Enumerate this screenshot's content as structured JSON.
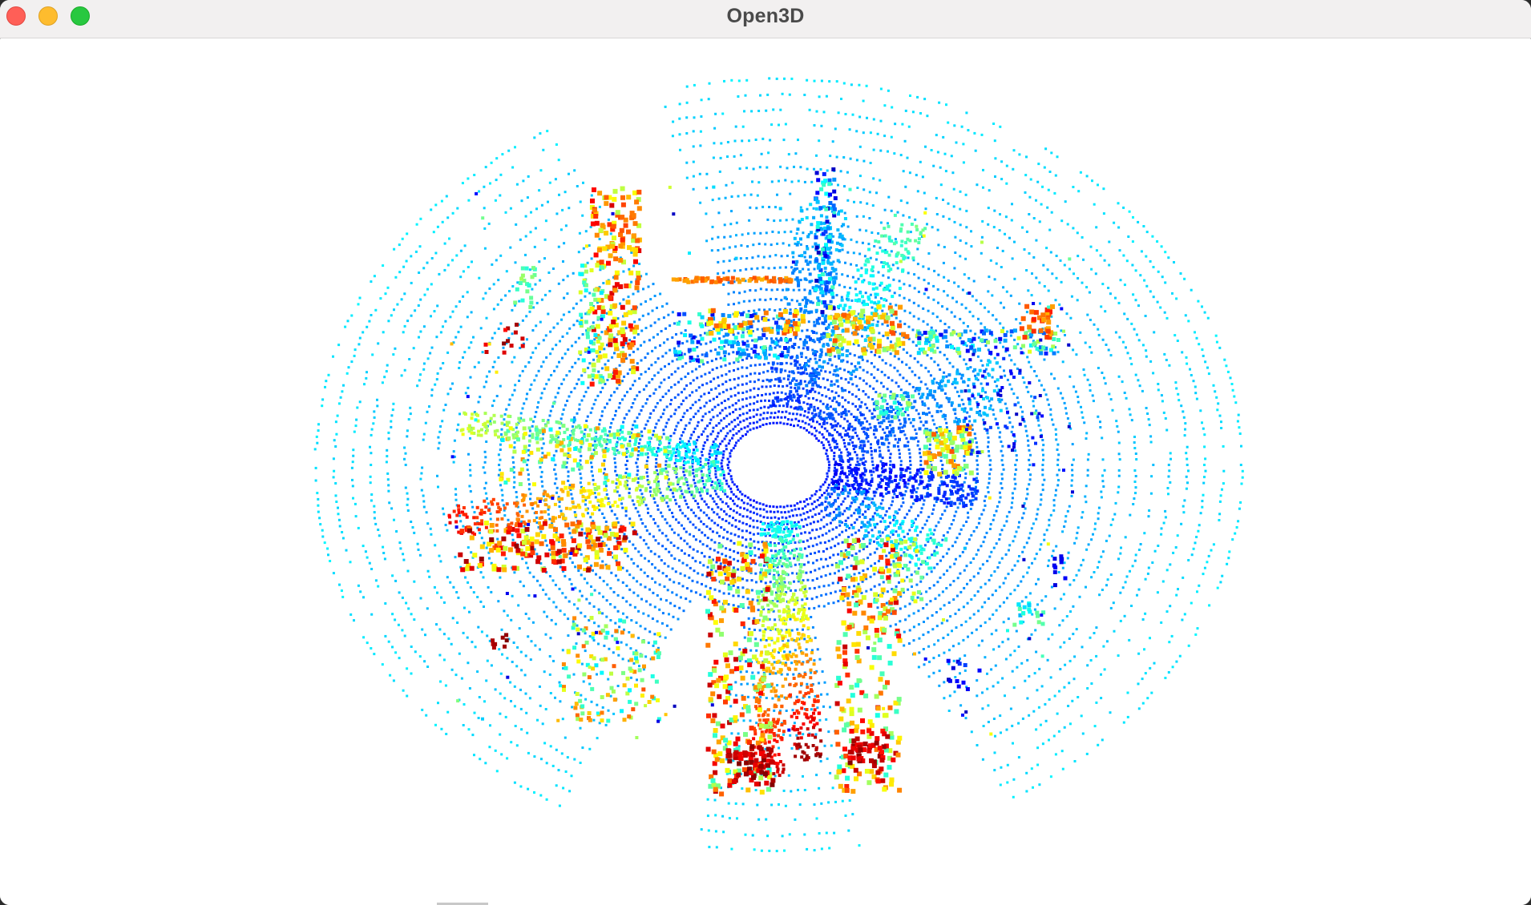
{
  "window": {
    "title": "Open3D",
    "controls": {
      "close": "close-button",
      "minimize": "minimize-button",
      "maximize": "zoom-button"
    }
  },
  "viewer": {
    "background": "#ffffff",
    "colormap": "jet",
    "colormap_stops": [
      "#00008f",
      "#0000ff",
      "#0080ff",
      "#00ffff",
      "#80ff80",
      "#ffff00",
      "#ff8000",
      "#ff0000",
      "#800000"
    ]
  }
}
